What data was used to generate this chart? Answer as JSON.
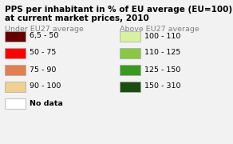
{
  "title_line1": "PPS per inhabitant in % of EU average (EU=100)",
  "title_line2": "at current market prices, 2010",
  "title_fontsize": 7.5,
  "title_fontweight": "bold",
  "background_color": "#f2f2f2",
  "under_header": "Under EU27 average",
  "above_header": "Above EU27 average",
  "header_color": "#808080",
  "header_fontsize": 6.8,
  "under_items": [
    {
      "label": "6,5 - 50",
      "color": "#660000"
    },
    {
      "label": "50 - 75",
      "color": "#ff0000"
    },
    {
      "label": "75 - 90",
      "color": "#e08050"
    },
    {
      "label": "90 - 100",
      "color": "#f0d090"
    },
    {
      "label": "No data",
      "color": "#ffffff"
    }
  ],
  "above_items": [
    {
      "label": "100 - 110",
      "color": "#d8f0a0"
    },
    {
      "label": "110 - 125",
      "color": "#88c844"
    },
    {
      "label": "125 - 150",
      "color": "#3a9a20"
    },
    {
      "label": "150 - 310",
      "color": "#1a4d10"
    }
  ],
  "item_fontsize": 6.8,
  "box_edge_color": "#aaaaaa",
  "no_data_label": "No data",
  "no_data_fontweight": "bold"
}
